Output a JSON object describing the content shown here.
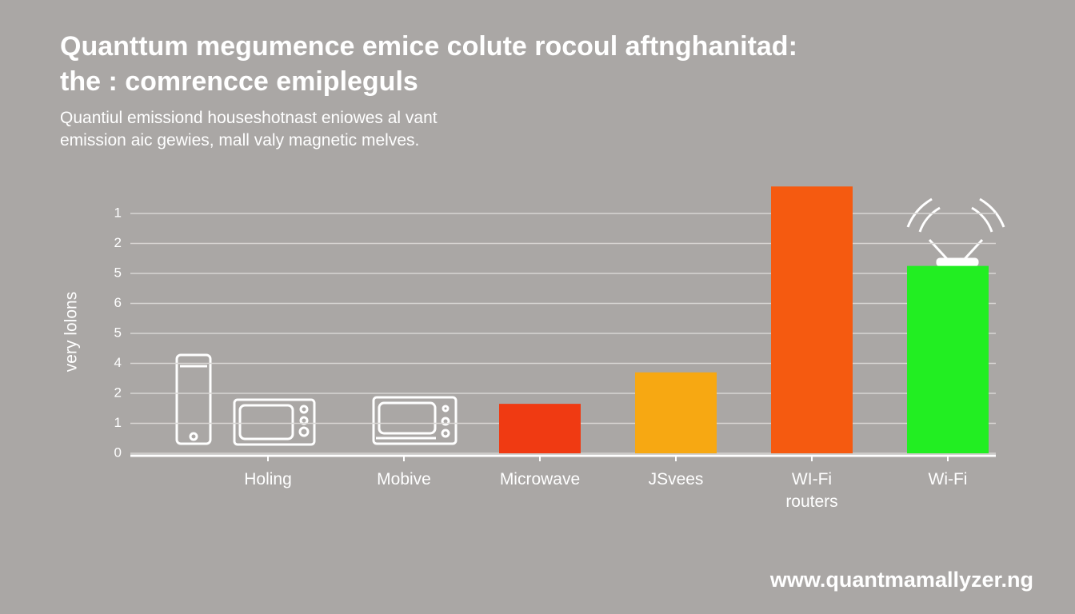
{
  "chart_data": {
    "type": "bar",
    "title": [
      "Quanttum megumence emice colute rocoul aftnghanitad:",
      "the : comrencce emipleguls"
    ],
    "subtitle": [
      "Quantiul emissiond houseshotnast eniowes al vant",
      "emission aic gewies, mall valy magnetic melves."
    ],
    "y_label": "very lolons",
    "footer": "www.quantmamallyzer.ng",
    "categories": [
      "Holing",
      "Mobive",
      "Microwave",
      "JSvees",
      "WI-Fi routers",
      "Wi-Fi"
    ],
    "values": [
      null,
      null,
      1.65,
      2.7,
      8.9,
      6.25
    ],
    "colors": [
      "#ffffff",
      "#ffffff",
      "#f03a12",
      "#f7a812",
      "#f55a10",
      "#22ee22"
    ],
    "ylim": [
      0,
      9
    ],
    "yticks": [
      0,
      1,
      2,
      {
        "value": 3,
        "label": "4"
      },
      {
        "value": 4,
        "label": "5"
      },
      {
        "value": 5,
        "label": "6"
      },
      {
        "value": 6,
        "label": "5"
      },
      {
        "value": 7,
        "label": "2"
      },
      {
        "value": 8,
        "label": "1"
      }
    ],
    "grid": true
  }
}
